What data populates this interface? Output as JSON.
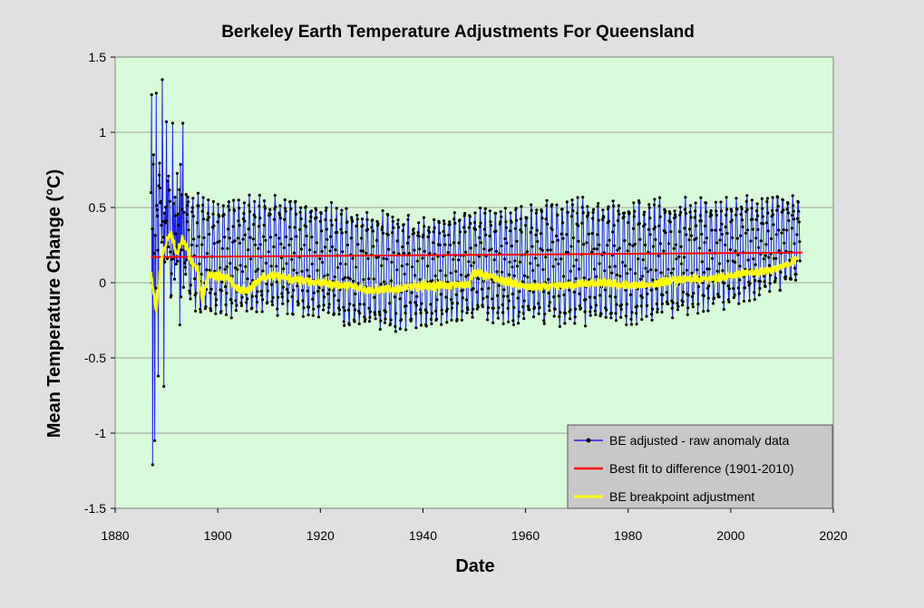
{
  "chart_data": {
    "type": "line",
    "title": "Berkeley Earth Temperature Adjustments For Queensland",
    "xlabel": "Date",
    "ylabel": "Mean  Temperature  Change  (°C)",
    "xlim": [
      1880,
      2020
    ],
    "ylim": [
      -1.5,
      1.5
    ],
    "x_ticks": [
      "1880",
      "1900",
      "1920",
      "1940",
      "1960",
      "1980",
      "2000",
      "2020"
    ],
    "y_ticks": [
      "1.5",
      "1",
      "0.5",
      "0",
      "-0.5",
      "-1",
      "-1.5"
    ],
    "grid": true,
    "legend_position": "bottom-right",
    "colors": {
      "plot_background": "#d9fad8",
      "page_background": "#e0e0e0",
      "raw": "#2020e0",
      "fit": "#ff0000",
      "breakpoint": "#ffff00",
      "legend_background": "#c8c8c8"
    },
    "series": [
      {
        "name": "BE adjusted - raw anomaly data",
        "style": "line-with-markers",
        "x_start": 1887.0,
        "x_end": 2013.5,
        "key_points": [
          {
            "x": 1887.1,
            "y": 1.25
          },
          {
            "x": 1887.3,
            "y": -1.21
          },
          {
            "x": 1887.5,
            "y": 0.85
          },
          {
            "x": 1887.7,
            "y": -1.05
          },
          {
            "x": 1888.0,
            "y": 1.26
          },
          {
            "x": 1888.4,
            "y": -0.62
          },
          {
            "x": 1889.2,
            "y": 1.35
          },
          {
            "x": 1889.5,
            "y": -0.69
          },
          {
            "x": 1890.0,
            "y": 1.07
          },
          {
            "x": 1891.2,
            "y": 1.06
          },
          {
            "x": 1893.2,
            "y": 1.06
          },
          {
            "x": 1892.6,
            "y": -0.28
          }
        ],
        "envelope": [
          {
            "x": 1895,
            "hi": 0.62,
            "lo": -0.2
          },
          {
            "x": 1900,
            "hi": 0.58,
            "lo": -0.26
          },
          {
            "x": 1910,
            "hi": 0.6,
            "lo": -0.22
          },
          {
            "x": 1920,
            "hi": 0.55,
            "lo": -0.27
          },
          {
            "x": 1930,
            "hi": 0.5,
            "lo": -0.34
          },
          {
            "x": 1940,
            "hi": 0.45,
            "lo": -0.32
          },
          {
            "x": 1950,
            "hi": 0.5,
            "lo": -0.26
          },
          {
            "x": 1960,
            "hi": 0.55,
            "lo": -0.3
          },
          {
            "x": 1970,
            "hi": 0.58,
            "lo": -0.3
          },
          {
            "x": 1980,
            "hi": 0.57,
            "lo": -0.3
          },
          {
            "x": 1990,
            "hi": 0.58,
            "lo": -0.25
          },
          {
            "x": 2000,
            "hi": 0.58,
            "lo": -0.18
          },
          {
            "x": 2013,
            "hi": 0.61,
            "lo": -0.03
          }
        ]
      },
      {
        "name": "Best fit to difference (1901-2010)",
        "style": "line",
        "x": [
          1887,
          2014
        ],
        "y": [
          0.17,
          0.2
        ]
      },
      {
        "name": "BE breakpoint adjustment",
        "style": "line",
        "x": [
          1887,
          1888,
          1889,
          1890,
          1891,
          1892,
          1893,
          1894,
          1895,
          1896,
          1897,
          1898,
          1900,
          1902,
          1904,
          1906,
          1908,
          1910,
          1915,
          1920,
          1925,
          1930,
          1935,
          1940,
          1945,
          1949,
          1950,
          1951,
          1955,
          1960,
          1965,
          1970,
          1975,
          1980,
          1985,
          1990,
          1995,
          2000,
          2005,
          2010,
          2013
        ],
        "y": [
          0.05,
          -0.18,
          0.15,
          0.28,
          0.33,
          0.18,
          0.3,
          0.22,
          0.12,
          0.1,
          -0.12,
          0.05,
          0.05,
          0.03,
          -0.05,
          -0.05,
          0.02,
          0.05,
          0.02,
          0.0,
          -0.02,
          -0.05,
          -0.04,
          -0.02,
          -0.02,
          -0.01,
          0.08,
          0.06,
          0.02,
          -0.03,
          -0.03,
          -0.01,
          0.0,
          -0.02,
          -0.01,
          0.02,
          0.02,
          0.05,
          0.07,
          0.1,
          0.16
        ]
      }
    ]
  }
}
